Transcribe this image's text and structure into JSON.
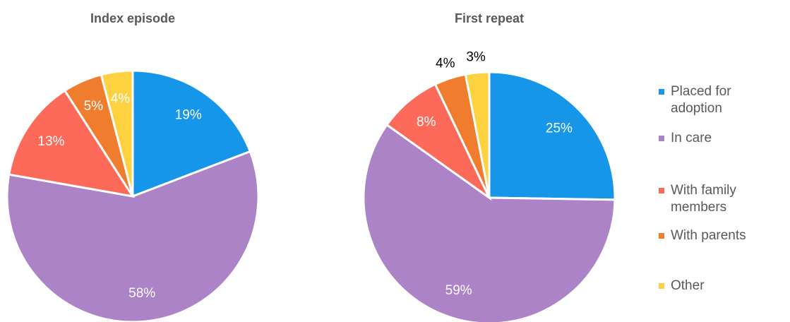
{
  "chart_data": [
    {
      "type": "pie",
      "title": "Index episode",
      "categories": [
        "Placed for adoption",
        "In care",
        "With family members",
        "With parents",
        "Other"
      ],
      "values": [
        19,
        58,
        13,
        5,
        4
      ],
      "value_labels": [
        "19%",
        "58%",
        "13%",
        "5%",
        "4%"
      ],
      "colors": [
        "#1696e8",
        "#ab83c6",
        "#fe6a5a",
        "#f07d2e",
        "#fdd13f"
      ]
    },
    {
      "type": "pie",
      "title": "First repeat",
      "categories": [
        "Placed for adoption",
        "In care",
        "With family members",
        "With parents",
        "Other"
      ],
      "values": [
        25,
        59,
        8,
        4,
        3
      ],
      "value_labels": [
        "25%",
        "59%",
        "8%",
        "4%",
        "3%"
      ],
      "colors": [
        "#1696e8",
        "#ab83c6",
        "#fe6a5a",
        "#f07d2e",
        "#fdd13f"
      ]
    }
  ]
}
